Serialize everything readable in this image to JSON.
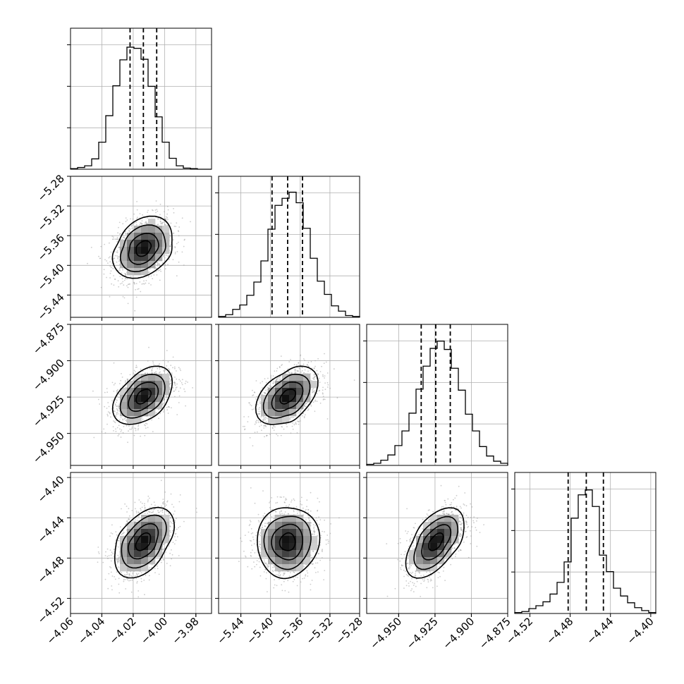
{
  "chart_data": {
    "type": "corner",
    "grid": true,
    "parameters": [
      {
        "index": 0,
        "range": [
          -4.06,
          -3.97
        ],
        "ticks": [
          -4.06,
          -4.04,
          -4.02,
          -4.0,
          -3.98
        ],
        "tick_labels": [
          "−4.06",
          "−4.04",
          "−4.02",
          "−4.00",
          "−3.98"
        ],
        "quantiles": [
          -4.022,
          -4.0135,
          -4.005
        ],
        "histogram": {
          "bin_edges": [
            -4.06,
            -4.0555,
            -4.051,
            -4.0465,
            -4.042,
            -4.0375,
            -4.033,
            -4.0285,
            -4.024,
            -4.0195,
            -4.015,
            -4.0105,
            -4.006,
            -4.0015,
            -3.997,
            -3.9925,
            -3.988,
            -3.9835,
            -3.979,
            -3.9745,
            -3.97
          ],
          "counts": [
            1,
            3,
            6,
            18,
            47,
            93,
            145,
            190,
            212,
            210,
            191,
            144,
            91,
            47,
            19,
            6,
            2,
            1,
            0,
            0
          ],
          "ymax": 245
        }
      },
      {
        "index": 1,
        "range": [
          -5.47,
          -5.28
        ],
        "ticks": [
          -5.44,
          -5.4,
          -5.36,
          -5.32,
          -5.28
        ],
        "tick_labels": [
          "−5.44",
          "−5.40",
          "−5.36",
          "−5.32",
          "−5.28"
        ],
        "quantiles": [
          -5.398,
          -5.377,
          -5.357
        ],
        "histogram": {
          "bin_edges": [
            -5.47,
            -5.4605,
            -5.451,
            -5.4415,
            -5.432,
            -5.4225,
            -5.413,
            -5.4035,
            -5.394,
            -5.3845,
            -5.375,
            -5.3655,
            -5.356,
            -5.3465,
            -5.337,
            -5.3275,
            -5.318,
            -5.3085,
            -5.299,
            -5.2895,
            -5.28
          ],
          "counts": [
            1,
            3,
            9,
            14,
            25,
            40,
            64,
            100,
            127,
            135,
            142,
            130,
            101,
            67,
            41,
            26,
            13,
            7,
            2,
            1
          ],
          "ymax": 160
        }
      },
      {
        "index": 2,
        "range": [
          -4.972,
          -4.875
        ],
        "ticks": [
          -4.95,
          -4.925,
          -4.9,
          -4.875
        ],
        "tick_labels": [
          "−4.950",
          "−4.925",
          "−4.900",
          "−4.875"
        ],
        "quantiles": [
          -4.9345,
          -4.9245,
          -4.9145
        ],
        "histogram": {
          "bin_edges": [
            -4.972,
            -4.96715,
            -4.9623,
            -4.95745,
            -4.9526,
            -4.94775,
            -4.9429,
            -4.93805,
            -4.9332,
            -4.92835,
            -4.9235,
            -4.91865,
            -4.9138,
            -4.90895,
            -4.9041,
            -4.89925,
            -4.8944,
            -4.88955,
            -4.8847,
            -4.87985,
            -4.875
          ],
          "counts": [
            1,
            2,
            5,
            10,
            19,
            33,
            50,
            73,
            95,
            112,
            119,
            111,
            93,
            72,
            49,
            33,
            18,
            9,
            4,
            2
          ],
          "ymax": 135
        }
      },
      {
        "index": 3,
        "range": [
          -4.535,
          -4.395
        ],
        "ticks": [
          -4.52,
          -4.48,
          -4.44,
          -4.4
        ],
        "tick_labels": [
          "−4.52",
          "−4.48",
          "−4.44",
          "−4.40"
        ],
        "quantiles": [
          -4.482,
          -4.464,
          -4.447
        ],
        "histogram": {
          "bin_edges": [
            -4.535,
            -4.528,
            -4.521,
            -4.514,
            -4.507,
            -4.5,
            -4.493,
            -4.486,
            -4.479,
            -4.472,
            -4.465,
            -4.458,
            -4.451,
            -4.444,
            -4.437,
            -4.43,
            -4.423,
            -4.416,
            -4.409,
            -4.402,
            -4.395
          ],
          "counts": [
            1,
            2,
            5,
            8,
            12,
            20,
            32,
            53,
            98,
            122,
            127,
            110,
            60,
            43,
            26,
            18,
            11,
            6,
            3,
            1
          ],
          "ymax": 145
        }
      }
    ],
    "pairs": [
      {
        "x": 0,
        "y": 1,
        "mean": [
          -4.0135,
          -5.377
        ],
        "sd": [
          0.0095,
          0.021
        ],
        "rho": 0.3
      },
      {
        "x": 0,
        "y": 2,
        "mean": [
          -4.0135,
          -4.9245
        ],
        "sd": [
          0.0095,
          0.01
        ],
        "rho": 0.45
      },
      {
        "x": 1,
        "y": 2,
        "mean": [
          -5.377,
          -4.9245
        ],
        "sd": [
          0.021,
          0.01
        ],
        "rho": 0.45
      },
      {
        "x": 0,
        "y": 3,
        "mean": [
          -4.0135,
          -4.464
        ],
        "sd": [
          0.0095,
          0.0175
        ],
        "rho": 0.45
      },
      {
        "x": 1,
        "y": 3,
        "mean": [
          -5.377,
          -4.464
        ],
        "sd": [
          0.021,
          0.0175
        ],
        "rho": 0.05
      },
      {
        "x": 2,
        "y": 3,
        "mean": [
          -4.9245,
          -4.464
        ],
        "sd": [
          0.01,
          0.0175
        ],
        "rho": 0.55
      }
    ],
    "contour_levels_sigma": [
      0.5,
      1.0,
      1.5,
      2.0
    ],
    "colors": {
      "line": "#000000",
      "grid": "#b0b0b0",
      "points": "#9a9a9a",
      "density_dark": "#000000",
      "density_light": "#ffffff"
    }
  }
}
